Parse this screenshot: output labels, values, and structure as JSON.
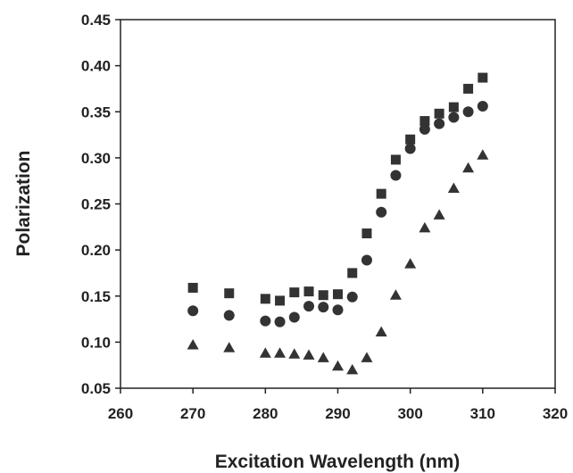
{
  "chart_data": {
    "type": "scatter",
    "title": "",
    "xlabel": "Excitation Wavelength (nm)",
    "ylabel": "Polarization",
    "xlim": [
      260,
      320
    ],
    "ylim": [
      0.05,
      0.45
    ],
    "xticks": [
      260,
      270,
      280,
      290,
      300,
      310,
      320
    ],
    "yticks": [
      0.05,
      0.1,
      0.15,
      0.2,
      0.25,
      0.3,
      0.35,
      0.4,
      0.45
    ],
    "grid": false,
    "legend": "none",
    "marker_color": "#333333",
    "series": [
      {
        "marker": "square",
        "points": [
          [
            270,
            0.159
          ],
          [
            275,
            0.153
          ],
          [
            280,
            0.147
          ],
          [
            282,
            0.145
          ],
          [
            284,
            0.154
          ],
          [
            286,
            0.155
          ],
          [
            288,
            0.151
          ],
          [
            290,
            0.152
          ],
          [
            292,
            0.175
          ],
          [
            294,
            0.218
          ],
          [
            296,
            0.261
          ],
          [
            298,
            0.298
          ],
          [
            300,
            0.32
          ],
          [
            302,
            0.34
          ],
          [
            304,
            0.348
          ],
          [
            306,
            0.355
          ],
          [
            308,
            0.375
          ],
          [
            310,
            0.387
          ]
        ]
      },
      {
        "marker": "circle",
        "points": [
          [
            270,
            0.134
          ],
          [
            275,
            0.129
          ],
          [
            280,
            0.123
          ],
          [
            282,
            0.122
          ],
          [
            284,
            0.127
          ],
          [
            286,
            0.139
          ],
          [
            288,
            0.138
          ],
          [
            290,
            0.135
          ],
          [
            292,
            0.149
          ],
          [
            294,
            0.189
          ],
          [
            296,
            0.241
          ],
          [
            298,
            0.281
          ],
          [
            300,
            0.31
          ],
          [
            302,
            0.331
          ],
          [
            304,
            0.337
          ],
          [
            306,
            0.344
          ],
          [
            308,
            0.35
          ],
          [
            310,
            0.356
          ]
        ]
      },
      {
        "marker": "triangle",
        "points": [
          [
            270,
            0.097
          ],
          [
            275,
            0.094
          ],
          [
            280,
            0.088
          ],
          [
            282,
            0.088
          ],
          [
            284,
            0.087
          ],
          [
            286,
            0.086
          ],
          [
            288,
            0.083
          ],
          [
            290,
            0.074
          ],
          [
            292,
            0.07
          ],
          [
            294,
            0.083
          ],
          [
            296,
            0.111
          ],
          [
            298,
            0.151
          ],
          [
            300,
            0.185
          ],
          [
            302,
            0.224
          ],
          [
            304,
            0.238
          ],
          [
            306,
            0.267
          ],
          [
            308,
            0.289
          ],
          [
            310,
            0.303
          ]
        ]
      }
    ]
  }
}
